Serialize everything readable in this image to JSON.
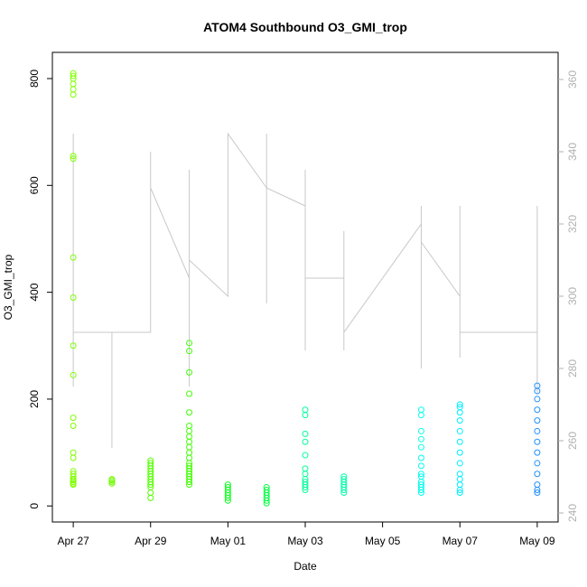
{
  "chart_data": {
    "type": "scatter",
    "title": "ATOM4 Southbound O3_GMI_trop",
    "x_label": "Date",
    "y_label": "O3_GMI_trop",
    "xlim": [
      "Apr 27",
      "May 09"
    ],
    "xticks": [
      "Apr 27",
      "Apr 29",
      "May 01",
      "May 03",
      "May 05",
      "May 07",
      "May 09"
    ],
    "ylim": [
      -30,
      849
    ],
    "yticks": [
      0,
      200,
      400,
      600,
      800
    ],
    "y2lim": [
      237.5,
      367.5
    ],
    "y2ticks": [
      240,
      260,
      280,
      300,
      320,
      340,
      360
    ],
    "series": [
      {
        "color": "#80ff00",
        "x": [
          "Apr 27",
          "Apr 27",
          "Apr 27",
          "Apr 27",
          "Apr 27",
          "Apr 27",
          "Apr 27",
          "Apr 27",
          "Apr 27",
          "Apr 27",
          "Apr 27",
          "Apr 27",
          "Apr 27",
          "Apr 27",
          "Apr 27",
          "Apr 27",
          "Apr 27",
          "Apr 27",
          "Apr 27",
          "Apr 27",
          "Apr 27",
          "Apr 27",
          "Apr 27",
          "Apr 27"
        ],
        "values": [
          40,
          45,
          50,
          55,
          60,
          65,
          42,
          48,
          90,
          100,
          150,
          165,
          245,
          300,
          390,
          465,
          650,
          655,
          770,
          780,
          790,
          800,
          805,
          810
        ]
      },
      {
        "color": "#70ff00",
        "x": [
          "Apr 28",
          "Apr 28",
          "Apr 28",
          "Apr 28"
        ],
        "values": [
          42,
          45,
          48,
          50
        ]
      },
      {
        "color": "#55ff00",
        "x": [
          "Apr 29",
          "Apr 29",
          "Apr 29",
          "Apr 29",
          "Apr 29",
          "Apr 29",
          "Apr 29",
          "Apr 29",
          "Apr 29",
          "Apr 29",
          "Apr 29",
          "Apr 29",
          "Apr 29"
        ],
        "values": [
          15,
          25,
          35,
          40,
          45,
          50,
          55,
          60,
          65,
          70,
          75,
          80,
          85
        ]
      },
      {
        "color": "#40ff00",
        "x": [
          "Apr 30",
          "Apr 30",
          "Apr 30",
          "Apr 30",
          "Apr 30",
          "Apr 30",
          "Apr 30",
          "Apr 30",
          "Apr 30",
          "Apr 30",
          "Apr 30",
          "Apr 30",
          "Apr 30",
          "Apr 30",
          "Apr 30",
          "Apr 30",
          "Apr 30",
          "Apr 30",
          "Apr 30",
          "Apr 30",
          "Apr 30"
        ],
        "values": [
          40,
          45,
          50,
          55,
          60,
          65,
          70,
          75,
          80,
          90,
          100,
          110,
          120,
          130,
          140,
          150,
          175,
          210,
          250,
          290,
          305
        ]
      },
      {
        "color": "#10ff20",
        "x": [
          "May 01",
          "May 01",
          "May 01",
          "May 01",
          "May 01",
          "May 01",
          "May 01"
        ],
        "values": [
          10,
          15,
          20,
          25,
          30,
          35,
          40
        ]
      },
      {
        "color": "#00ff40",
        "x": [
          "May 02",
          "May 02",
          "May 02",
          "May 02",
          "May 02",
          "May 02",
          "May 02"
        ],
        "values": [
          5,
          10,
          15,
          20,
          25,
          30,
          35
        ]
      },
      {
        "color": "#00ff99",
        "x": [
          "May 03",
          "May 03",
          "May 03",
          "May 03",
          "May 03",
          "May 03",
          "May 03",
          "May 03",
          "May 03",
          "May 03",
          "May 03",
          "May 03"
        ],
        "values": [
          30,
          35,
          40,
          45,
          50,
          60,
          70,
          95,
          120,
          135,
          170,
          180
        ]
      },
      {
        "color": "#00ffaa",
        "x": [
          "May 04",
          "May 04",
          "May 04",
          "May 04",
          "May 04",
          "May 04",
          "May 04"
        ],
        "values": [
          25,
          30,
          35,
          40,
          45,
          50,
          55
        ]
      },
      {
        "color": "#00ffee",
        "x": [
          "May 06",
          "May 06",
          "May 06",
          "May 06",
          "May 06",
          "May 06",
          "May 06",
          "May 06",
          "May 06",
          "May 06",
          "May 06",
          "May 06",
          "May 06",
          "May 06"
        ],
        "values": [
          25,
          30,
          35,
          40,
          45,
          55,
          60,
          75,
          90,
          110,
          125,
          140,
          170,
          180
        ]
      },
      {
        "color": "#00eeff",
        "x": [
          "May 07",
          "May 07",
          "May 07",
          "May 07",
          "May 07",
          "May 07",
          "May 07",
          "May 07",
          "May 07",
          "May 07",
          "May 07",
          "May 07",
          "May 07"
        ],
        "values": [
          25,
          30,
          40,
          50,
          60,
          80,
          100,
          120,
          140,
          160,
          175,
          185,
          190
        ]
      },
      {
        "color": "#2090ff",
        "x": [
          "May 09",
          "May 09",
          "May 09",
          "May 09",
          "May 09",
          "May 09",
          "May 09",
          "May 09",
          "May 09",
          "May 09",
          "May 09",
          "May 09",
          "May 09"
        ],
        "values": [
          25,
          30,
          40,
          60,
          80,
          100,
          120,
          140,
          160,
          180,
          200,
          215,
          225
        ]
      },
      {
        "color": "#c8c8c8",
        "axis": "y2",
        "kind": "line",
        "x": [
          "Apr 27",
          "Apr 27",
          "Apr 27",
          "Apr 27",
          "Apr 27",
          "Apr 27",
          "Apr 27",
          "Apr 28",
          "Apr 28",
          "Apr 28",
          "Apr 29",
          "Apr 29",
          "Apr 29",
          "Apr 29",
          "Apr 29",
          "Apr 30",
          "Apr 30",
          "Apr 30",
          "Apr 30",
          "Apr 30",
          "Apr 30",
          "May 01",
          "May 01",
          "May 01",
          "May 01",
          "May 01",
          "May 01",
          "May 02",
          "May 02",
          "May 02",
          "May 02",
          "May 02",
          "May 02",
          "May 03",
          "May 03",
          "May 03",
          "May 03",
          "May 03",
          "May 03",
          "May 04",
          "May 04",
          "May 04",
          "May 04",
          "May 06",
          "May 06",
          "May 06",
          "May 06",
          "May 06",
          "May 07",
          "May 07",
          "May 07",
          "May 07",
          "May 07",
          "May 09",
          "May 09",
          "May 09",
          "May 09",
          "May 09"
        ],
        "values": [
          280,
          290,
          300,
          330,
          345,
          275,
          290,
          290,
          258,
          290,
          290,
          300,
          340,
          295,
          330,
          305,
          330,
          275,
          335,
          300,
          310,
          300,
          340,
          345,
          330,
          300,
          345,
          330,
          298,
          345,
          300,
          300,
          330,
          325,
          285,
          335,
          310,
          300,
          305,
          305,
          285,
          318,
          290,
          320,
          280,
          325,
          300,
          315,
          300,
          320,
          283,
          325,
          290,
          290,
          325,
          273,
          322,
          290
        ]
      }
    ]
  }
}
